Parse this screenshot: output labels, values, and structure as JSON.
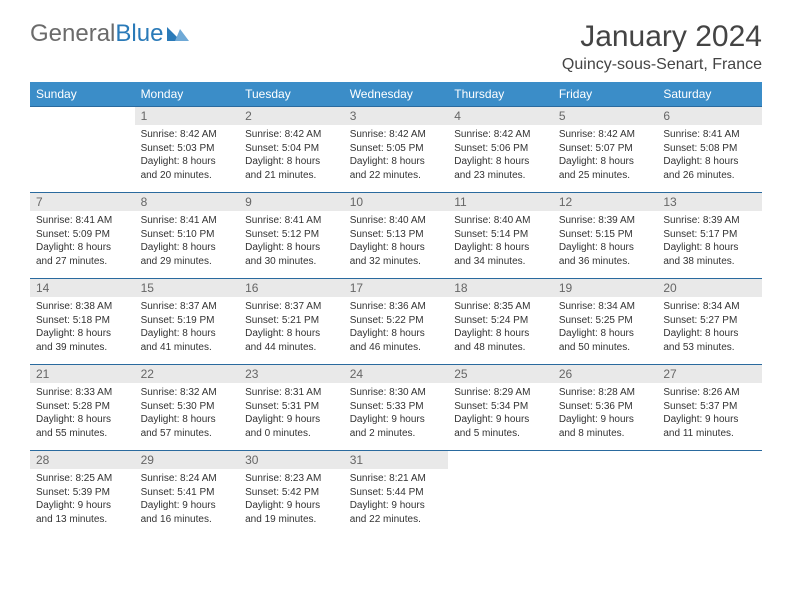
{
  "logo": {
    "text_general": "General",
    "text_blue": "Blue"
  },
  "title": "January 2024",
  "location": "Quincy-sous-Senart, France",
  "colors": {
    "header_bg": "#3b8dc8",
    "header_text": "#ffffff",
    "daynum_bg": "#e9e9e9",
    "daynum_text": "#666666",
    "border": "#2a6a9e",
    "body_text": "#333333",
    "title_text": "#444444"
  },
  "weekdays": [
    "Sunday",
    "Monday",
    "Tuesday",
    "Wednesday",
    "Thursday",
    "Friday",
    "Saturday"
  ],
  "first_weekday_index": 1,
  "days": [
    {
      "n": 1,
      "sunrise": "8:42 AM",
      "sunset": "5:03 PM",
      "daylight": "8 hours and 20 minutes."
    },
    {
      "n": 2,
      "sunrise": "8:42 AM",
      "sunset": "5:04 PM",
      "daylight": "8 hours and 21 minutes."
    },
    {
      "n": 3,
      "sunrise": "8:42 AM",
      "sunset": "5:05 PM",
      "daylight": "8 hours and 22 minutes."
    },
    {
      "n": 4,
      "sunrise": "8:42 AM",
      "sunset": "5:06 PM",
      "daylight": "8 hours and 23 minutes."
    },
    {
      "n": 5,
      "sunrise": "8:42 AM",
      "sunset": "5:07 PM",
      "daylight": "8 hours and 25 minutes."
    },
    {
      "n": 6,
      "sunrise": "8:41 AM",
      "sunset": "5:08 PM",
      "daylight": "8 hours and 26 minutes."
    },
    {
      "n": 7,
      "sunrise": "8:41 AM",
      "sunset": "5:09 PM",
      "daylight": "8 hours and 27 minutes."
    },
    {
      "n": 8,
      "sunrise": "8:41 AM",
      "sunset": "5:10 PM",
      "daylight": "8 hours and 29 minutes."
    },
    {
      "n": 9,
      "sunrise": "8:41 AM",
      "sunset": "5:12 PM",
      "daylight": "8 hours and 30 minutes."
    },
    {
      "n": 10,
      "sunrise": "8:40 AM",
      "sunset": "5:13 PM",
      "daylight": "8 hours and 32 minutes."
    },
    {
      "n": 11,
      "sunrise": "8:40 AM",
      "sunset": "5:14 PM",
      "daylight": "8 hours and 34 minutes."
    },
    {
      "n": 12,
      "sunrise": "8:39 AM",
      "sunset": "5:15 PM",
      "daylight": "8 hours and 36 minutes."
    },
    {
      "n": 13,
      "sunrise": "8:39 AM",
      "sunset": "5:17 PM",
      "daylight": "8 hours and 38 minutes."
    },
    {
      "n": 14,
      "sunrise": "8:38 AM",
      "sunset": "5:18 PM",
      "daylight": "8 hours and 39 minutes."
    },
    {
      "n": 15,
      "sunrise": "8:37 AM",
      "sunset": "5:19 PM",
      "daylight": "8 hours and 41 minutes."
    },
    {
      "n": 16,
      "sunrise": "8:37 AM",
      "sunset": "5:21 PM",
      "daylight": "8 hours and 44 minutes."
    },
    {
      "n": 17,
      "sunrise": "8:36 AM",
      "sunset": "5:22 PM",
      "daylight": "8 hours and 46 minutes."
    },
    {
      "n": 18,
      "sunrise": "8:35 AM",
      "sunset": "5:24 PM",
      "daylight": "8 hours and 48 minutes."
    },
    {
      "n": 19,
      "sunrise": "8:34 AM",
      "sunset": "5:25 PM",
      "daylight": "8 hours and 50 minutes."
    },
    {
      "n": 20,
      "sunrise": "8:34 AM",
      "sunset": "5:27 PM",
      "daylight": "8 hours and 53 minutes."
    },
    {
      "n": 21,
      "sunrise": "8:33 AM",
      "sunset": "5:28 PM",
      "daylight": "8 hours and 55 minutes."
    },
    {
      "n": 22,
      "sunrise": "8:32 AM",
      "sunset": "5:30 PM",
      "daylight": "8 hours and 57 minutes."
    },
    {
      "n": 23,
      "sunrise": "8:31 AM",
      "sunset": "5:31 PM",
      "daylight": "9 hours and 0 minutes."
    },
    {
      "n": 24,
      "sunrise": "8:30 AM",
      "sunset": "5:33 PM",
      "daylight": "9 hours and 2 minutes."
    },
    {
      "n": 25,
      "sunrise": "8:29 AM",
      "sunset": "5:34 PM",
      "daylight": "9 hours and 5 minutes."
    },
    {
      "n": 26,
      "sunrise": "8:28 AM",
      "sunset": "5:36 PM",
      "daylight": "9 hours and 8 minutes."
    },
    {
      "n": 27,
      "sunrise": "8:26 AM",
      "sunset": "5:37 PM",
      "daylight": "9 hours and 11 minutes."
    },
    {
      "n": 28,
      "sunrise": "8:25 AM",
      "sunset": "5:39 PM",
      "daylight": "9 hours and 13 minutes."
    },
    {
      "n": 29,
      "sunrise": "8:24 AM",
      "sunset": "5:41 PM",
      "daylight": "9 hours and 16 minutes."
    },
    {
      "n": 30,
      "sunrise": "8:23 AM",
      "sunset": "5:42 PM",
      "daylight": "9 hours and 19 minutes."
    },
    {
      "n": 31,
      "sunrise": "8:21 AM",
      "sunset": "5:44 PM",
      "daylight": "9 hours and 22 minutes."
    }
  ],
  "labels": {
    "sunrise": "Sunrise",
    "sunset": "Sunset",
    "daylight": "Daylight"
  }
}
